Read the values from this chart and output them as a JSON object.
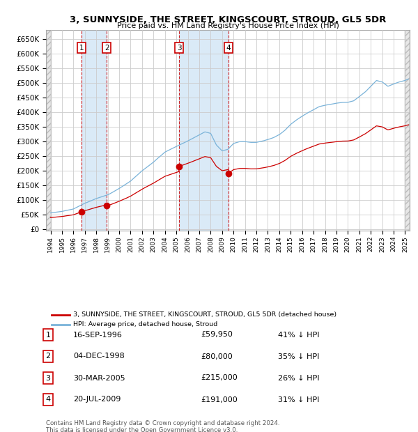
{
  "title_line1": "3, SUNNYSIDE, THE STREET, KINGSCOURT, STROUD, GL5 5DR",
  "title_line2": "Price paid vs. HM Land Registry's House Price Index (HPI)",
  "purchases": [
    {
      "num": 1,
      "date": "16-SEP-1996",
      "date_x": 1996.71,
      "price": 59950,
      "pct": "41%"
    },
    {
      "num": 2,
      "date": "04-DEC-1998",
      "date_x": 1998.92,
      "price": 80000,
      "pct": "35%"
    },
    {
      "num": 3,
      "date": "30-MAR-2005",
      "date_x": 2005.24,
      "price": 215000,
      "pct": "26%"
    },
    {
      "num": 4,
      "date": "20-JUL-2009",
      "date_x": 2009.55,
      "price": 191000,
      "pct": "31%"
    }
  ],
  "ylabel_ticks": [
    "£0",
    "£50K",
    "£100K",
    "£150K",
    "£200K",
    "£250K",
    "£300K",
    "£350K",
    "£400K",
    "£450K",
    "£500K",
    "£550K",
    "£600K",
    "£650K"
  ],
  "ytick_values": [
    0,
    50000,
    100000,
    150000,
    200000,
    250000,
    300000,
    350000,
    400000,
    450000,
    500000,
    550000,
    600000,
    650000
  ],
  "xlim": [
    1993.6,
    2025.4
  ],
  "ylim": [
    -5000,
    680000
  ],
  "hpi_color": "#7ab3d9",
  "price_color": "#cc0000",
  "dot_color": "#cc0000",
  "shade_color": "#daeaf7",
  "hatch_color": "#d8d8d8",
  "grid_color": "#cccccc",
  "background_color": "#ffffff",
  "legend_line1": "3, SUNNYSIDE, THE STREET, KINGSCOURT, STROUD, GL5 5DR (detached house)",
  "legend_line2": "HPI: Average price, detached house, Stroud",
  "table_rows": [
    [
      "1",
      "16-SEP-1996",
      "£59,950",
      "41% ↓ HPI"
    ],
    [
      "2",
      "04-DEC-1998",
      "£80,000",
      "35% ↓ HPI"
    ],
    [
      "3",
      "30-MAR-2005",
      "£215,000",
      "26% ↓ HPI"
    ],
    [
      "4",
      "20-JUL-2009",
      "£191,000",
      "31% ↓ HPI"
    ]
  ],
  "footer1": "Contains HM Land Registry data © Crown copyright and database right 2024.",
  "footer2": "This data is licensed under the Open Government Licence v3.0.",
  "hpi_anchors_x": [
    1994.0,
    1995.0,
    1996.0,
    1997.0,
    1998.0,
    1999.0,
    2000.0,
    2001.0,
    2002.0,
    2003.0,
    2004.0,
    2005.0,
    2005.5,
    2006.0,
    2006.5,
    2007.0,
    2007.5,
    2008.0,
    2008.5,
    2009.0,
    2009.5,
    2010.0,
    2010.5,
    2011.0,
    2011.5,
    2012.0,
    2012.5,
    2013.0,
    2013.5,
    2014.0,
    2014.5,
    2015.0,
    2015.5,
    2016.0,
    2016.5,
    2017.0,
    2017.5,
    2018.0,
    2018.5,
    2019.0,
    2019.5,
    2020.0,
    2020.5,
    2021.0,
    2021.5,
    2022.0,
    2022.5,
    2023.0,
    2023.5,
    2024.0,
    2024.5,
    2025.0,
    2025.3
  ],
  "hpi_anchors_y": [
    56000,
    60000,
    70000,
    90000,
    105000,
    118000,
    140000,
    165000,
    200000,
    230000,
    265000,
    285000,
    295000,
    305000,
    315000,
    325000,
    335000,
    330000,
    290000,
    270000,
    275000,
    295000,
    300000,
    300000,
    298000,
    298000,
    302000,
    308000,
    315000,
    325000,
    340000,
    360000,
    375000,
    388000,
    400000,
    410000,
    420000,
    425000,
    428000,
    432000,
    435000,
    435000,
    440000,
    455000,
    470000,
    490000,
    510000,
    505000,
    490000,
    498000,
    505000,
    510000,
    515000
  ]
}
